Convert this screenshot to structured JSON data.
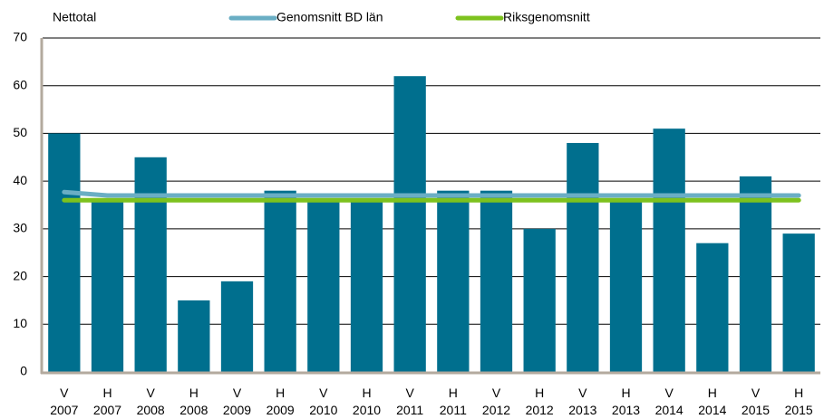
{
  "chart_data": {
    "type": "bar",
    "y_label": "Nettotal",
    "categories": [
      [
        "V",
        "2007"
      ],
      [
        "H",
        "2007"
      ],
      [
        "V",
        "2008"
      ],
      [
        "H",
        "2008"
      ],
      [
        "V",
        "2009"
      ],
      [
        "H",
        "2009"
      ],
      [
        "V",
        "2010"
      ],
      [
        "H",
        "2010"
      ],
      [
        "V",
        "2011"
      ],
      [
        "H",
        "2011"
      ],
      [
        "V",
        "2012"
      ],
      [
        "H",
        "2012"
      ],
      [
        "V",
        "2013"
      ],
      [
        "H",
        "2013"
      ],
      [
        "V",
        "2014"
      ],
      [
        "H",
        "2014"
      ],
      [
        "V",
        "2015"
      ],
      [
        "H",
        "2015"
      ]
    ],
    "values": [
      50,
      36,
      45,
      15,
      19,
      38,
      36,
      36,
      62,
      38,
      38,
      30,
      48,
      36,
      51,
      27,
      41,
      29
    ],
    "color": "#006f8e",
    "series": [
      {
        "name": "Genomsnitt BD län",
        "color": "#6aaec4",
        "values": [
          37.7,
          37,
          37,
          37,
          37,
          37,
          37,
          37,
          37,
          37,
          37,
          37,
          37,
          37,
          37,
          37,
          37,
          37
        ]
      },
      {
        "name": "Riksgenomsnitt",
        "color": "#7dc21e",
        "values": [
          36,
          36,
          36,
          36,
          36,
          36,
          36,
          36,
          36,
          36,
          36,
          36,
          36,
          36,
          36,
          36,
          36,
          36
        ]
      }
    ],
    "ylim": [
      0,
      70
    ],
    "yticks": [
      0,
      10,
      20,
      30,
      40,
      50,
      60,
      70
    ],
    "grid": true
  }
}
